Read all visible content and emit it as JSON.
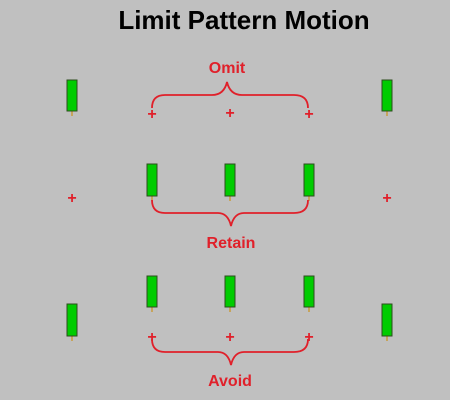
{
  "title": "Limit Pattern Motion",
  "colors": {
    "background": "#c0c0c0",
    "title": "#000000",
    "accent": "#e0202a",
    "bar_fill": "#00cc00",
    "bar_border": "#2e4d1e",
    "wick": "#c89a3a"
  },
  "rows": [
    {
      "label": "Omit",
      "cells": [
        "bar",
        "plus",
        "plus",
        "plus",
        "bar"
      ]
    },
    {
      "label": "Retain",
      "cells": [
        "plus",
        "bar",
        "bar",
        "bar",
        "plus"
      ]
    },
    {
      "label": "Avoid",
      "cells": [
        "bar",
        "bar",
        "bar",
        "bar",
        "bar"
      ]
    }
  ],
  "plus_symbol": "+"
}
